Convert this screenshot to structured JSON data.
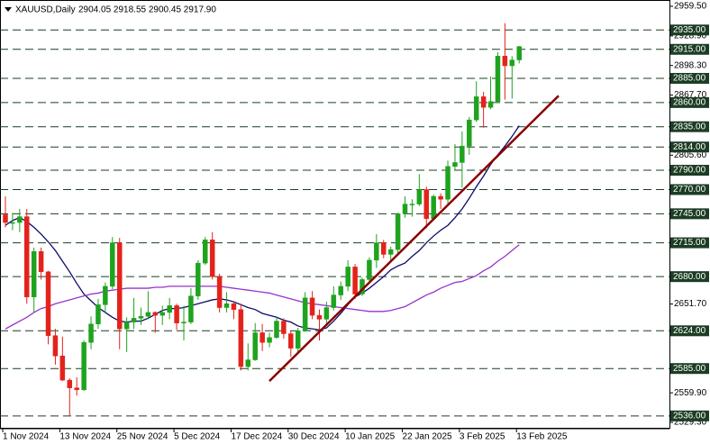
{
  "chart_data": {
    "type": "candlestick",
    "title": "XAUUSD,Daily",
    "subtitle": "2904.05 2918.55 2900.45 2917.90",
    "categories": [
      "1 Nov 2024",
      null,
      null,
      null,
      null,
      null,
      null,
      null,
      "13 Nov 2024",
      null,
      null,
      null,
      null,
      null,
      null,
      null,
      "25 Nov 2024",
      null,
      null,
      null,
      null,
      null,
      null,
      null,
      "5 Dec 2024",
      null,
      null,
      null,
      null,
      null,
      null,
      null,
      "17 Dec 2024",
      null,
      null,
      null,
      null,
      null,
      null,
      null,
      "30 Dec 2024",
      null,
      null,
      null,
      null,
      null,
      null,
      null,
      "10 Jan 2025",
      null,
      null,
      null,
      null,
      null,
      null,
      null,
      "22 Jan 2025",
      null,
      null,
      null,
      null,
      null,
      null,
      null,
      "3 Feb 2025",
      null,
      null,
      null,
      null,
      null,
      null,
      null,
      "13 Feb 2025"
    ],
    "open": [
      2744,
      2736,
      2736,
      2742,
      2659,
      2706,
      2685,
      2619,
      2598,
      2573,
      2565,
      2563,
      2612,
      2631,
      2651,
      2670,
      2715,
      2626,
      2633,
      2637,
      2639,
      2643,
      2640,
      2643,
      2650,
      2632,
      2633,
      2660,
      2694,
      2718,
      2680,
      2648,
      2652,
      2646,
      2587,
      2594,
      2622,
      2612,
      2617,
      2634,
      2621,
      2606,
      2624,
      2658,
      2640,
      2636,
      2648,
      2661,
      2670,
      2690,
      2662,
      2677,
      2697,
      2715,
      2703,
      2708,
      2745,
      2755,
      2755,
      2770,
      2740,
      2763,
      2760,
      2794,
      2798,
      2815,
      2842,
      2866,
      2855,
      2861,
      2908,
      2898,
      2904.05
    ],
    "high": [
      2763,
      2746,
      2750,
      2750,
      2710,
      2710,
      2686,
      2626,
      2618,
      2575,
      2576,
      2614,
      2639,
      2657,
      2674,
      2721,
      2720,
      2638,
      2658,
      2648,
      2665,
      2644,
      2650,
      2658,
      2652,
      2650,
      2668,
      2697,
      2721,
      2726,
      2683,
      2664,
      2654,
      2652,
      2611,
      2632,
      2631,
      2622,
      2639,
      2637,
      2624,
      2627,
      2664,
      2665,
      2646,
      2654,
      2670,
      2675,
      2697,
      2693,
      2679,
      2700,
      2724,
      2718,
      2711,
      2746,
      2763,
      2760,
      2786,
      2773,
      2765,
      2766,
      2800,
      2817,
      2830,
      2845,
      2882,
      2871,
      2887,
      2912,
      2942,
      2908,
      2918.55
    ],
    "low": [
      2731,
      2728,
      2726,
      2652,
      2643,
      2677,
      2610,
      2589,
      2572,
      2536,
      2557,
      2562,
      2605,
      2626,
      2643,
      2667,
      2605,
      2602,
      2626,
      2630,
      2636,
      2622,
      2630,
      2636,
      2625,
      2614,
      2631,
      2656,
      2692,
      2677,
      2643,
      2643,
      2636,
      2583,
      2583,
      2593,
      2603,
      2607,
      2616,
      2616,
      2597,
      2602,
      2623,
      2636,
      2614,
      2630,
      2645,
      2656,
      2665,
      2657,
      2660,
      2673,
      2689,
      2699,
      2697,
      2703,
      2741,
      2742,
      2753,
      2730,
      2739,
      2750,
      2755,
      2790,
      2772,
      2806,
      2840,
      2834,
      2853,
      2860,
      2863,
      2864,
      2900.45
    ],
    "close": [
      2736,
      2736,
      2742,
      2659,
      2706,
      2685,
      2619,
      2598,
      2573,
      2565,
      2563,
      2612,
      2631,
      2651,
      2670,
      2715,
      2626,
      2633,
      2637,
      2639,
      2643,
      2640,
      2643,
      2650,
      2632,
      2633,
      2660,
      2694,
      2718,
      2680,
      2648,
      2652,
      2646,
      2587,
      2594,
      2622,
      2612,
      2617,
      2634,
      2621,
      2606,
      2624,
      2658,
      2640,
      2636,
      2648,
      2661,
      2670,
      2690,
      2662,
      2677,
      2697,
      2715,
      2703,
      2708,
      2745,
      2755,
      2755,
      2770,
      2740,
      2763,
      2760,
      2794,
      2798,
      2815,
      2842,
      2866,
      2855,
      2861,
      2908,
      2898,
      2904,
      2917.9
    ],
    "up_color": "#1fa31f",
    "down_color": "#e3231b",
    "series": [
      {
        "color": "#0b0b6b",
        "values": [
          2733,
          2738,
          2741,
          2737,
          2731,
          2724,
          2716,
          2707,
          2696,
          2685,
          2673,
          2662,
          2655,
          2648,
          2643,
          2638,
          2634,
          2633,
          2634,
          2634,
          2637,
          2641,
          2645,
          2647,
          2647,
          2648,
          2650,
          2652,
          2654,
          2656,
          2657,
          2656,
          2654,
          2651,
          2648,
          2646,
          2642,
          2640,
          2638,
          2635,
          2633,
          2629,
          2627,
          2626,
          2625,
          2627,
          2634,
          2642,
          2651,
          2659,
          2663,
          2668,
          2674,
          2680,
          2687,
          2691,
          2694,
          2701,
          2707,
          2715,
          2722,
          2728,
          2733,
          2741,
          2750,
          2761,
          2773,
          2784,
          2796,
          2806,
          2815,
          2825,
          2836
        ]
      },
      {
        "color": "#9932cc",
        "values": [
          2626,
          2630,
          2634,
          2638,
          2643,
          2647,
          2649,
          2652,
          2654,
          2656,
          2658,
          2660,
          2662,
          2663,
          2665,
          2666,
          2667,
          2668,
          2668,
          2668,
          2668,
          2669,
          2669,
          2670,
          2670,
          2670,
          2670,
          2670,
          2670,
          2670,
          2670,
          2669,
          2668,
          2667,
          2666,
          2665,
          2664,
          2663,
          2661,
          2659,
          2657,
          2655,
          2653,
          2652,
          2651,
          2650,
          2649,
          2648,
          2647,
          2646,
          2645,
          2644,
          2644,
          2644,
          2645,
          2647,
          2649,
          2653,
          2657,
          2661,
          2664,
          2668,
          2671,
          2674,
          2675,
          2678,
          2681,
          2686,
          2690,
          2696,
          2701,
          2707,
          2713
        ]
      }
    ],
    "trendline": {
      "color": "#8b0000",
      "values": [
        2572,
        2867
      ]
    },
    "levels": [
      {
        "value": 2935,
        "label": "2935.00"
      },
      {
        "value": 2915,
        "label": "2915.00"
      },
      {
        "value": 2885,
        "label": "2885.00"
      },
      {
        "value": 2860,
        "label": "2860.00"
      },
      {
        "value": 2835,
        "label": "2835.00"
      },
      {
        "value": 2814,
        "label": "2814.00"
      },
      {
        "value": 2790,
        "label": "2790.00"
      },
      {
        "value": 2770,
        "label": "2770.00"
      },
      {
        "value": 2745,
        "label": "2745.00"
      },
      {
        "value": 2715,
        "label": "2715.00"
      },
      {
        "value": 2680,
        "label": "2680.00"
      },
      {
        "value": 2624,
        "label": "2624.00"
      },
      {
        "value": 2585,
        "label": "2585.00"
      },
      {
        "value": 2536,
        "label": "2536.00"
      }
    ],
    "level_color": "#1b3d24",
    "ylim": [
      2522.8,
      2966
    ],
    "yticks": [
      {
        "value": 2959.5,
        "label": "2959.50"
      },
      {
        "value": 2928.9,
        "label": "2928.90"
      },
      {
        "value": 2898.3,
        "label": "2898.30"
      },
      {
        "value": 2867.7,
        "label": "2867.70"
      },
      {
        "value": 2805.6,
        "label": "2805.60"
      },
      {
        "value": 2651.7,
        "label": "2651.70"
      },
      {
        "value": 2559.9,
        "label": "2559.90"
      },
      {
        "value": 2529.3,
        "label": "2529.30"
      }
    ]
  }
}
